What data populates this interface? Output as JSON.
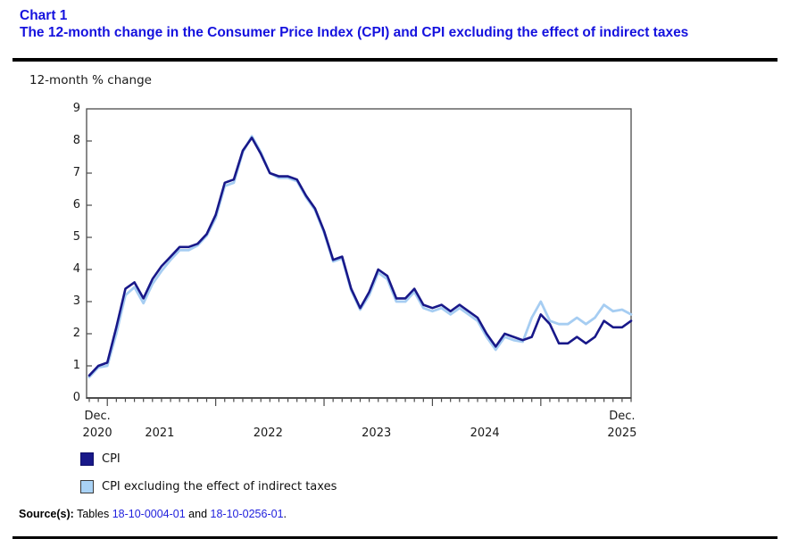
{
  "header": {
    "chart_label": "Chart 1",
    "title": "The 12-month change in the Consumer Price Index (CPI) and CPI excluding the effect of indirect taxes"
  },
  "colors": {
    "title_blue": "#1512de",
    "link_blue": "#2222dd",
    "cpi_navy": "#181889",
    "cpi_ex_light_blue": "#a6cdf2",
    "legend_light_fill": "#a9d2f5",
    "axis_gray": "#4a4a4a",
    "text_black": "#1a1a1a"
  },
  "chart_data": {
    "type": "line",
    "title": "The 12-month change in the Consumer Price Index (CPI) and CPI excluding the effect of indirect taxes",
    "y_axis_title": "12-month % change",
    "ylim": [
      0,
      9
    ],
    "y_ticks": [
      0,
      1,
      2,
      3,
      4,
      5,
      6,
      7,
      8,
      9
    ],
    "grid": false,
    "legend_position": "bottom-left",
    "x_range": {
      "start": "Dec. 2020",
      "end": "Dec. 2025",
      "frequency": "monthly",
      "points": 61
    },
    "x_start_label": [
      "Dec.",
      "2020"
    ],
    "x_end_label": [
      "Dec.",
      "2025"
    ],
    "year_labels": [
      {
        "label": "2021",
        "month_index": 7.8
      },
      {
        "label": "2022",
        "month_index": 19.8
      },
      {
        "label": "2023",
        "month_index": 31.8
      },
      {
        "label": "2024",
        "month_index": 43.8
      }
    ],
    "series": [
      {
        "name": "CPI excluding the effect of indirect taxes",
        "color": "#a6cdf2",
        "values": [
          0.65,
          0.95,
          1.0,
          2.0,
          3.2,
          3.45,
          2.95,
          3.55,
          3.95,
          4.3,
          4.6,
          4.6,
          4.75,
          5.05,
          5.6,
          6.6,
          6.7,
          7.65,
          8.15,
          7.65,
          7.0,
          6.85,
          6.85,
          6.75,
          6.25,
          5.85,
          5.15,
          4.25,
          4.35,
          3.35,
          2.75,
          3.2,
          3.9,
          3.7,
          3.0,
          3.0,
          3.3,
          2.8,
          2.7,
          2.8,
          2.6,
          2.8,
          2.6,
          2.4,
          1.9,
          1.5,
          1.9,
          1.8,
          1.75,
          2.5,
          3.0,
          2.4,
          2.3,
          2.3,
          2.5,
          2.3,
          2.5,
          2.9,
          2.7,
          2.75,
          2.6
        ]
      },
      {
        "name": "CPI",
        "color": "#181889",
        "values": [
          0.7,
          1.0,
          1.1,
          2.2,
          3.4,
          3.6,
          3.1,
          3.7,
          4.1,
          4.4,
          4.7,
          4.7,
          4.8,
          5.1,
          5.7,
          6.7,
          6.8,
          7.7,
          8.1,
          7.6,
          7.0,
          6.9,
          6.9,
          6.8,
          6.3,
          5.9,
          5.2,
          4.3,
          4.4,
          3.4,
          2.8,
          3.3,
          4.0,
          3.8,
          3.1,
          3.1,
          3.4,
          2.9,
          2.8,
          2.9,
          2.7,
          2.9,
          2.7,
          2.5,
          2.0,
          1.6,
          2.0,
          1.9,
          1.8,
          1.9,
          2.6,
          2.3,
          1.7,
          1.7,
          1.9,
          1.7,
          1.9,
          2.4,
          2.2,
          2.2,
          2.4
        ]
      }
    ]
  },
  "legend": {
    "items": [
      {
        "label": "CPI",
        "fill": "#181889",
        "border": "#10106a"
      },
      {
        "label": "CPI excluding the effect of indirect taxes",
        "fill": "#a9d2f5",
        "border": "#3a3a3a"
      }
    ]
  },
  "source": {
    "prefix": "Source(s):",
    "before": " Tables ",
    "link1": "18-10-0004-01",
    "conj": " and ",
    "link2": "18-10-0256-01",
    "period": "."
  }
}
